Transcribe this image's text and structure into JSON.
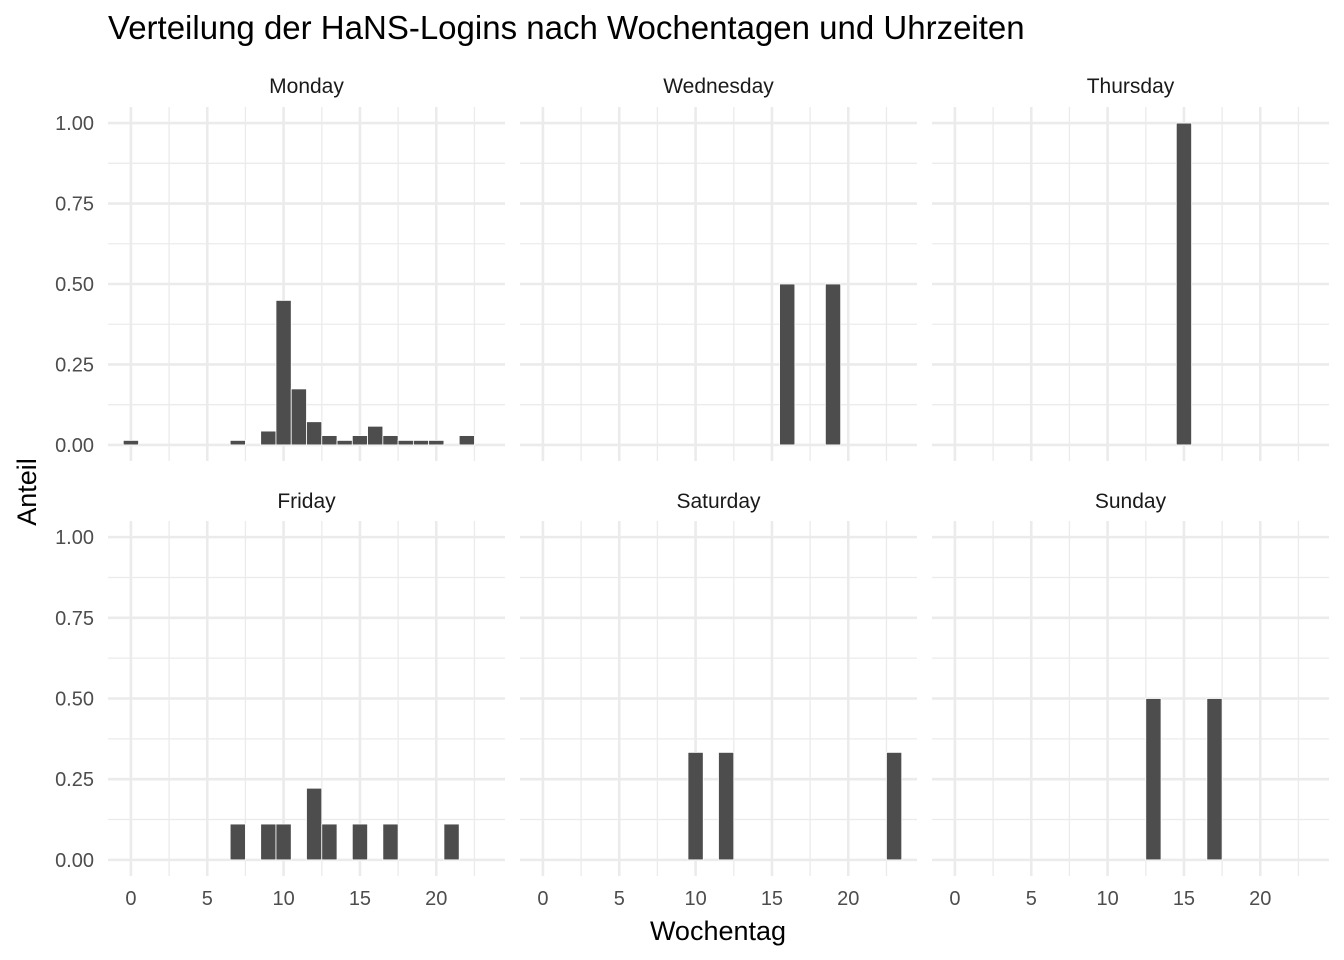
{
  "chart_data": {
    "type": "bar",
    "title": "Verteilung der HaNS-Logins nach Wochentagen und Uhrzeiten",
    "xlabel": "Wochentag",
    "ylabel": "Anteil",
    "xlim": [
      -1.5,
      24.5
    ],
    "ylim": [
      -0.05,
      1.05
    ],
    "x_ticks": [
      0,
      5,
      10,
      15,
      20
    ],
    "x_tick_labels": [
      "0",
      "5",
      "10",
      "15",
      "20"
    ],
    "y_ticks": [
      0,
      0.25,
      0.5,
      0.75,
      1.0
    ],
    "y_tick_labels": [
      "0.00",
      "0.25",
      "0.50",
      "0.75",
      "1.00"
    ],
    "grid": true,
    "bar_color": "#4d4d4d",
    "grid_color": "#ebebeb",
    "facet_layout": {
      "rows": 2,
      "cols": 3
    },
    "panels": [
      {
        "name": "Monday",
        "x": [
          0,
          7,
          9,
          10,
          11,
          12,
          13,
          14,
          15,
          16,
          17,
          18,
          19,
          20,
          22
        ],
        "values": [
          0.014,
          0.014,
          0.043,
          0.449,
          0.174,
          0.072,
          0.029,
          0.014,
          0.029,
          0.058,
          0.029,
          0.014,
          0.014,
          0.014,
          0.029
        ]
      },
      {
        "name": "Wednesday",
        "x": [
          16,
          19
        ],
        "values": [
          0.5,
          0.5
        ]
      },
      {
        "name": "Thursday",
        "x": [
          15
        ],
        "values": [
          1.0
        ]
      },
      {
        "name": "Friday",
        "x": [
          7,
          9,
          10,
          12,
          13,
          15,
          17,
          21
        ],
        "values": [
          0.111,
          0.111,
          0.111,
          0.222,
          0.111,
          0.111,
          0.111,
          0.111
        ]
      },
      {
        "name": "Saturday",
        "x": [
          10,
          12,
          23
        ],
        "values": [
          0.333,
          0.333,
          0.333
        ]
      },
      {
        "name": "Sunday",
        "x": [
          13,
          17
        ],
        "values": [
          0.5,
          0.5
        ]
      }
    ]
  }
}
